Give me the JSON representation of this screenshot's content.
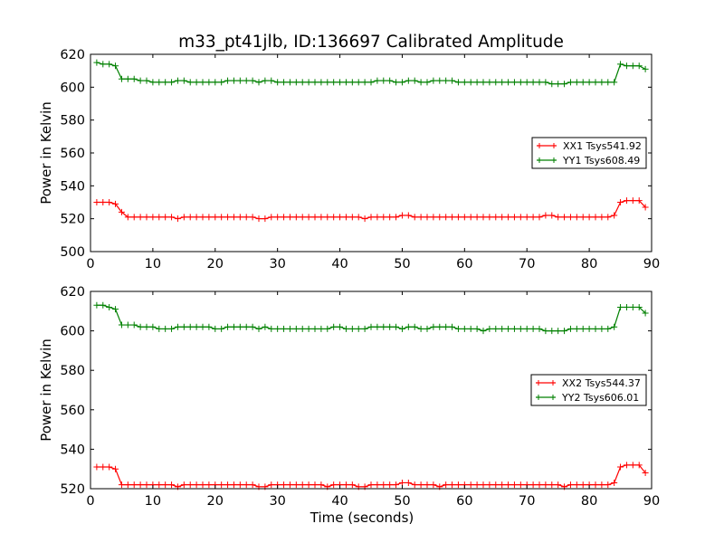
{
  "chart_data": [
    {
      "type": "line",
      "title": "m33_pt41jlb, ID:136697 Calibrated Amplitude",
      "xlabel": "",
      "ylabel": "Power in Kelvin",
      "xlim": [
        0,
        90
      ],
      "ylim": [
        500,
        620
      ],
      "xticks": [
        "0",
        "10",
        "20",
        "30",
        "40",
        "50",
        "60",
        "70",
        "80",
        "90"
      ],
      "yticks": [
        "500",
        "520",
        "540",
        "560",
        "580",
        "600",
        "620"
      ],
      "legend": "center-right",
      "x": [
        1,
        2,
        3,
        4,
        5,
        6,
        7,
        8,
        9,
        10,
        11,
        12,
        13,
        14,
        15,
        16,
        17,
        18,
        19,
        20,
        21,
        22,
        23,
        24,
        25,
        26,
        27,
        28,
        29,
        30,
        31,
        32,
        33,
        34,
        35,
        36,
        37,
        38,
        39,
        40,
        41,
        42,
        43,
        44,
        45,
        46,
        47,
        48,
        49,
        50,
        51,
        52,
        53,
        54,
        55,
        56,
        57,
        58,
        59,
        60,
        61,
        62,
        63,
        64,
        65,
        66,
        67,
        68,
        69,
        70,
        71,
        72,
        73,
        74,
        75,
        76,
        77,
        78,
        79,
        80,
        81,
        82,
        83,
        84,
        85,
        86,
        87,
        88,
        89
      ],
      "series": [
        {
          "name": "XX1 Tsys541.92",
          "color": "#ff0000",
          "values": [
            530,
            530,
            530,
            529,
            524,
            521,
            521,
            521,
            521,
            521,
            521,
            521,
            521,
            520,
            521,
            521,
            521,
            521,
            521,
            521,
            521,
            521,
            521,
            521,
            521,
            521,
            520,
            520,
            521,
            521,
            521,
            521,
            521,
            521,
            521,
            521,
            521,
            521,
            521,
            521,
            521,
            521,
            521,
            520,
            521,
            521,
            521,
            521,
            521,
            522,
            522,
            521,
            521,
            521,
            521,
            521,
            521,
            521,
            521,
            521,
            521,
            521,
            521,
            521,
            521,
            521,
            521,
            521,
            521,
            521,
            521,
            521,
            522,
            522,
            521,
            521,
            521,
            521,
            521,
            521,
            521,
            521,
            521,
            522,
            530,
            531,
            531,
            531,
            527
          ]
        },
        {
          "name": "YY1 Tsys608.49",
          "color": "#008000",
          "values": [
            615,
            614,
            614,
            613,
            605,
            605,
            605,
            604,
            604,
            603,
            603,
            603,
            603,
            604,
            604,
            603,
            603,
            603,
            603,
            603,
            603,
            604,
            604,
            604,
            604,
            604,
            603,
            604,
            604,
            603,
            603,
            603,
            603,
            603,
            603,
            603,
            603,
            603,
            603,
            603,
            603,
            603,
            603,
            603,
            603,
            604,
            604,
            604,
            603,
            603,
            604,
            604,
            603,
            603,
            604,
            604,
            604,
            604,
            603,
            603,
            603,
            603,
            603,
            603,
            603,
            603,
            603,
            603,
            603,
            603,
            603,
            603,
            603,
            602,
            602,
            602,
            603,
            603,
            603,
            603,
            603,
            603,
            603,
            603,
            614,
            613,
            613,
            613,
            611
          ]
        }
      ]
    },
    {
      "type": "line",
      "title": "",
      "xlabel": "Time (seconds)",
      "ylabel": "Power in Kelvin",
      "xlim": [
        0,
        90
      ],
      "ylim": [
        520,
        620
      ],
      "xticks": [
        "0",
        "10",
        "20",
        "30",
        "40",
        "50",
        "60",
        "70",
        "80",
        "90"
      ],
      "yticks": [
        "520",
        "540",
        "560",
        "580",
        "600",
        "620"
      ],
      "legend": "center-right",
      "x": [
        1,
        2,
        3,
        4,
        5,
        6,
        7,
        8,
        9,
        10,
        11,
        12,
        13,
        14,
        15,
        16,
        17,
        18,
        19,
        20,
        21,
        22,
        23,
        24,
        25,
        26,
        27,
        28,
        29,
        30,
        31,
        32,
        33,
        34,
        35,
        36,
        37,
        38,
        39,
        40,
        41,
        42,
        43,
        44,
        45,
        46,
        47,
        48,
        49,
        50,
        51,
        52,
        53,
        54,
        55,
        56,
        57,
        58,
        59,
        60,
        61,
        62,
        63,
        64,
        65,
        66,
        67,
        68,
        69,
        70,
        71,
        72,
        73,
        74,
        75,
        76,
        77,
        78,
        79,
        80,
        81,
        82,
        83,
        84,
        85,
        86,
        87,
        88,
        89
      ],
      "series": [
        {
          "name": "XX2 Tsys544.37",
          "color": "#ff0000",
          "values": [
            531,
            531,
            531,
            530,
            522,
            522,
            522,
            522,
            522,
            522,
            522,
            522,
            522,
            521,
            522,
            522,
            522,
            522,
            522,
            522,
            522,
            522,
            522,
            522,
            522,
            522,
            521,
            521,
            522,
            522,
            522,
            522,
            522,
            522,
            522,
            522,
            522,
            521,
            522,
            522,
            522,
            522,
            521,
            521,
            522,
            522,
            522,
            522,
            522,
            523,
            523,
            522,
            522,
            522,
            522,
            521,
            522,
            522,
            522,
            522,
            522,
            522,
            522,
            522,
            522,
            522,
            522,
            522,
            522,
            522,
            522,
            522,
            522,
            522,
            522,
            521,
            522,
            522,
            522,
            522,
            522,
            522,
            522,
            523,
            531,
            532,
            532,
            532,
            528
          ]
        },
        {
          "name": "YY2 Tsys606.01",
          "color": "#008000",
          "values": [
            613,
            613,
            612,
            611,
            603,
            603,
            603,
            602,
            602,
            602,
            601,
            601,
            601,
            602,
            602,
            602,
            602,
            602,
            602,
            601,
            601,
            602,
            602,
            602,
            602,
            602,
            601,
            602,
            601,
            601,
            601,
            601,
            601,
            601,
            601,
            601,
            601,
            601,
            602,
            602,
            601,
            601,
            601,
            601,
            602,
            602,
            602,
            602,
            602,
            601,
            602,
            602,
            601,
            601,
            602,
            602,
            602,
            602,
            601,
            601,
            601,
            601,
            600,
            601,
            601,
            601,
            601,
            601,
            601,
            601,
            601,
            601,
            600,
            600,
            600,
            600,
            601,
            601,
            601,
            601,
            601,
            601,
            601,
            602,
            612,
            612,
            612,
            612,
            609
          ]
        }
      ]
    }
  ]
}
